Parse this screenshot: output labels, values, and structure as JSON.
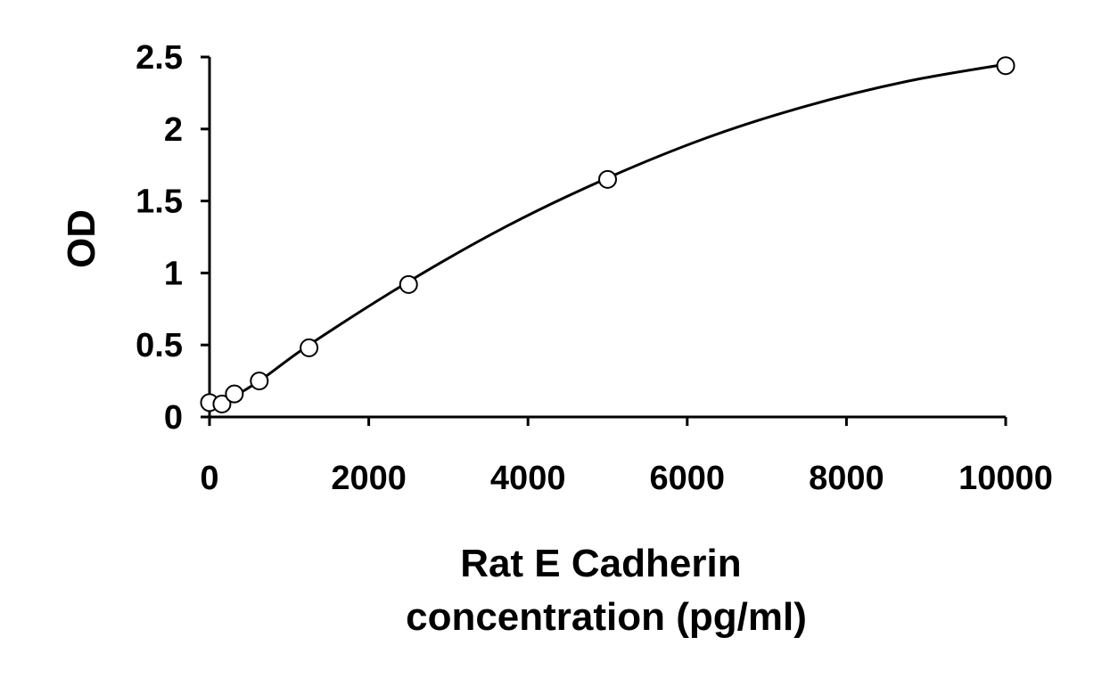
{
  "chart_data": {
    "type": "scatter",
    "title": "",
    "xlabel": "Rat E Cadherin concentration (pg/ml)",
    "xlabel_lines": [
      "Rat E Cadherin",
      "concentration (pg/ml)"
    ],
    "ylabel": "OD",
    "xlim": [
      0,
      10000
    ],
    "ylim": [
      0,
      2.5
    ],
    "x_ticks": [
      0,
      2000,
      4000,
      6000,
      8000,
      10000
    ],
    "x_tick_labels": [
      "0",
      "2000",
      "4000",
      "6000",
      "8000",
      "10000"
    ],
    "y_ticks": [
      0,
      0.5,
      1,
      1.5,
      2,
      2.5
    ],
    "y_tick_labels": [
      "0",
      "0.5",
      "1",
      "1.5",
      "2",
      "2.5"
    ],
    "grid": false,
    "series": [
      {
        "marker": "open-circle",
        "x": [
          0,
          156,
          312,
          625,
          1250,
          2500,
          5000,
          10000
        ],
        "y": [
          0.1,
          0.09,
          0.16,
          0.25,
          0.48,
          0.92,
          1.65,
          2.44
        ]
      }
    ],
    "fit_curve": {
      "style": "smooth-line",
      "x": [
        0,
        625,
        1250,
        2500,
        3750,
        5000,
        6250,
        7500,
        8750,
        10000
      ],
      "y": [
        0.04,
        0.25,
        0.5,
        0.94,
        1.33,
        1.66,
        1.94,
        2.16,
        2.33,
        2.45
      ]
    },
    "colors": {
      "axis": "#000000",
      "marker_stroke": "#000000",
      "marker_fill": "#ffffff",
      "curve": "#000000"
    }
  }
}
